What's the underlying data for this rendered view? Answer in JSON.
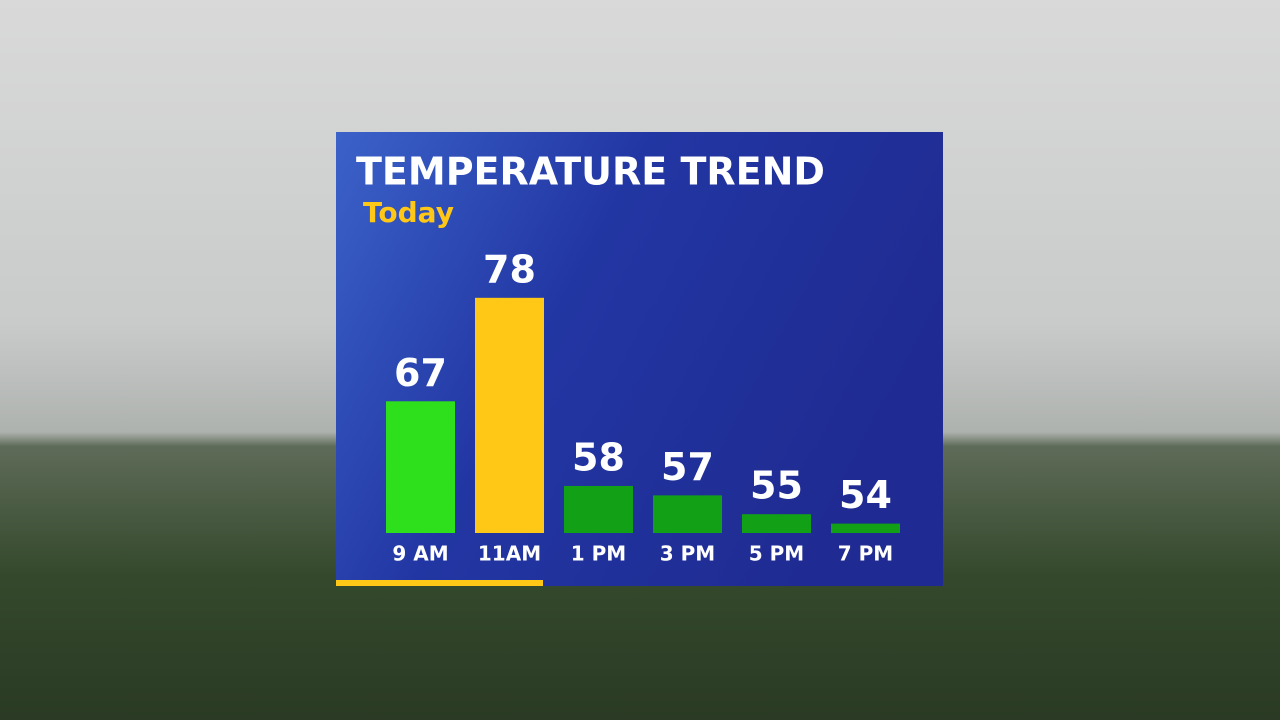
{
  "chart_data": {
    "type": "bar",
    "title": "TEMPERATURE TREND",
    "subtitle": "Today",
    "categories": [
      "9 AM",
      "11AM",
      "1 PM",
      "3 PM",
      "5 PM",
      "7 PM"
    ],
    "values": [
      67,
      78,
      58,
      57,
      55,
      54
    ],
    "colors": [
      "#2ee01c",
      "#ffc816",
      "#12a016",
      "#12a016",
      "#12a016",
      "#12a016"
    ],
    "ylim": [
      53,
      80
    ]
  }
}
